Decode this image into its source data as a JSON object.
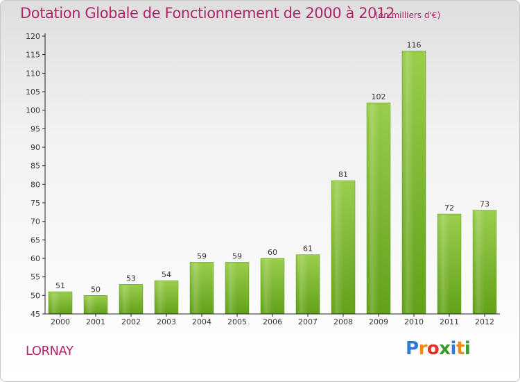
{
  "title": "Dotation Globale de Fonctionnement de 2000 à 2012",
  "subtitle": "(en milliers d'€)",
  "commune": "LORNAY",
  "logo": {
    "text": "Proxiti",
    "letters": [
      "P",
      "r",
      "o",
      "x",
      "i",
      "t",
      "i"
    ],
    "colors": [
      "#2e7bd6",
      "#f08a1c",
      "#e8302a",
      "#3a9a2a",
      "#2e7bd6",
      "#f08a1c",
      "#3a9a2a"
    ]
  },
  "colors": {
    "accent": "#b0266b",
    "bar_light": "#9acd4c",
    "bar_dark": "#62a11a"
  },
  "chart_data": {
    "type": "bar",
    "categories": [
      "2000",
      "2001",
      "2002",
      "2003",
      "2004",
      "2005",
      "2006",
      "2007",
      "2008",
      "2009",
      "2010",
      "2011",
      "2012"
    ],
    "values": [
      51,
      50,
      53,
      54,
      59,
      59,
      60,
      61,
      81,
      102,
      116,
      72,
      73
    ],
    "title": "Dotation Globale de Fonctionnement de 2000 à 2012",
    "subtitle": "(en milliers d'€)",
    "xlabel": "",
    "ylabel": "",
    "ylim": [
      45,
      120
    ],
    "yticks": [
      45,
      50,
      55,
      60,
      65,
      70,
      75,
      80,
      85,
      90,
      95,
      100,
      105,
      110,
      115,
      120
    ],
    "grid": false,
    "legend": "none"
  }
}
